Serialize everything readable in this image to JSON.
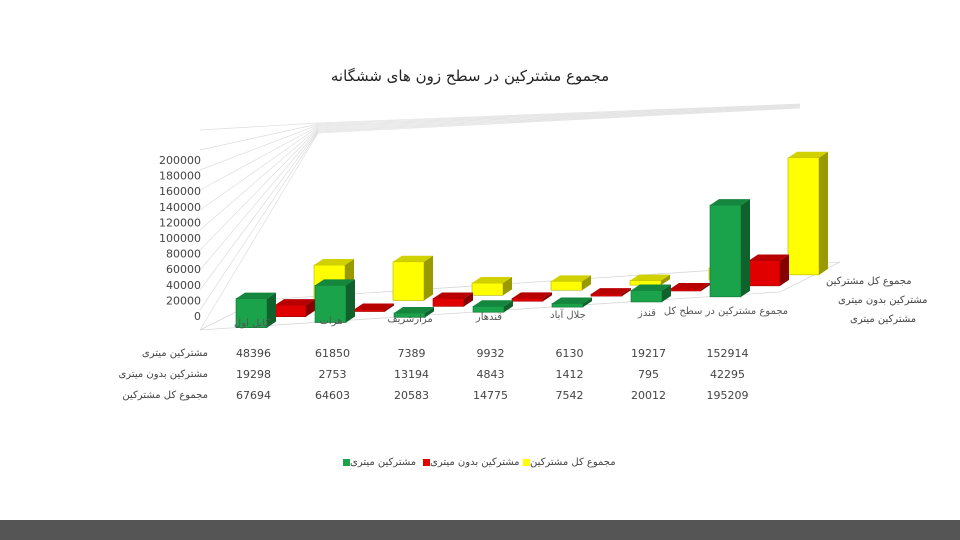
{
  "chart_data": {
    "type": "bar",
    "title": "مجموع مشترکین در سطح زون های ششگانه",
    "categories": [
      "کابل اول",
      "هرات",
      "مزارشریف",
      "قندهار",
      "جلال آباد",
      "قندز",
      "مجموع مشترکین در سطح کل"
    ],
    "series": [
      {
        "name": "مشترکین میتری",
        "color": "#1aa34a",
        "values": [
          48396,
          61850,
          7389,
          9932,
          6130,
          19217,
          152914
        ]
      },
      {
        "name": "مشترکین بدون میتری",
        "color": "#e00000",
        "values": [
          19298,
          2753,
          13194,
          4843,
          1412,
          795,
          42295
        ]
      },
      {
        "name": "مجموع کل مشترکین",
        "color": "#ffff00",
        "values": [
          67694,
          64603,
          20583,
          14775,
          7542,
          20012,
          195209
        ]
      }
    ],
    "y_ticks": [
      "200000",
      "180000",
      "160000",
      "140000",
      "120000",
      "100000",
      "80000",
      "60000",
      "40000",
      "20000",
      "0"
    ],
    "ylim": [
      0,
      200000
    ],
    "legend_position": "bottom"
  }
}
